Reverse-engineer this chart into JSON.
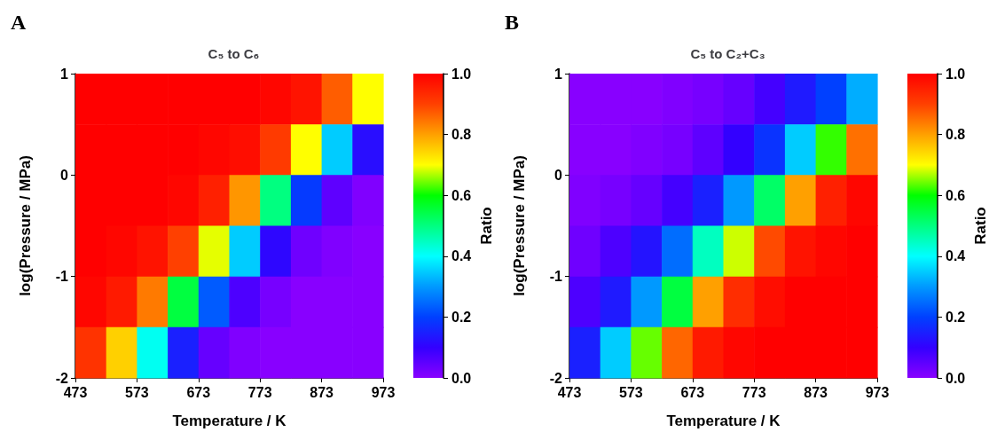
{
  "chart_data": [
    {
      "type": "heatmap",
      "title": "C₅ to C₆",
      "xlabel": "Temperature / K",
      "ylabel": "log(Pressure / MPa)",
      "clabel": "Ratio",
      "annotations": [
        "A"
      ],
      "x": [
        498,
        548,
        598,
        648,
        698,
        748,
        798,
        848,
        898,
        948
      ],
      "y": [
        0.75,
        0.25,
        -0.25,
        -0.75,
        -1.25,
        -1.75
      ],
      "xlim": [
        473,
        973
      ],
      "xticks": [
        473,
        573,
        673,
        773,
        873,
        973
      ],
      "ylim": [
        -2,
        1
      ],
      "yticks": [
        -2,
        -1,
        0,
        1
      ],
      "clim": [
        0,
        1
      ],
      "cticks": [
        {
          "value": 0,
          "label": "0.0"
        },
        {
          "value": 0.2,
          "label": "0.2"
        },
        {
          "value": 0.4,
          "label": "0.4"
        },
        {
          "value": 0.6,
          "label": "0.6"
        },
        {
          "value": 0.8,
          "label": "0.8"
        },
        {
          "value": 1,
          "label": "1.0"
        }
      ],
      "cells": [
        [
          1.0,
          1.0,
          1.0,
          1.0,
          1.0,
          1.0,
          0.99,
          0.97,
          0.87,
          0.7
        ],
        [
          1.0,
          1.0,
          1.0,
          1.0,
          0.99,
          0.98,
          0.91,
          0.7,
          0.35,
          0.12
        ],
        [
          1.0,
          1.0,
          1.0,
          0.99,
          0.95,
          0.81,
          0.5,
          0.19,
          0.05,
          0.01
        ],
        [
          1.0,
          0.99,
          0.97,
          0.9,
          0.69,
          0.35,
          0.11,
          0.03,
          0.01,
          0.0
        ],
        [
          0.99,
          0.96,
          0.84,
          0.55,
          0.23,
          0.07,
          0.02,
          0.0,
          0.0,
          0.0
        ],
        [
          0.92,
          0.75,
          0.41,
          0.15,
          0.04,
          0.01,
          0.0,
          0.0,
          0.0,
          0.0
        ]
      ]
    },
    {
      "type": "heatmap",
      "title": "C₅ to C₂+C₃",
      "xlabel": "Temperature / K",
      "ylabel": "log(Pressure / MPa)",
      "clabel": "Ratio",
      "annotations": [
        "B"
      ],
      "x": [
        498,
        548,
        598,
        648,
        698,
        748,
        798,
        848,
        898,
        948
      ],
      "y": [
        0.75,
        0.25,
        -0.25,
        -0.75,
        -1.25,
        -1.75
      ],
      "xlim": [
        473,
        973
      ],
      "xticks": [
        473,
        573,
        673,
        773,
        873,
        973
      ],
      "ylim": [
        -2,
        1
      ],
      "yticks": [
        -2,
        -1,
        0,
        1
      ],
      "clim": [
        0,
        1
      ],
      "cticks": [
        {
          "value": 0,
          "label": "0.0"
        },
        {
          "value": 0.2,
          "label": "0.2"
        },
        {
          "value": 0.4,
          "label": "0.4"
        },
        {
          "value": 0.6,
          "label": "0.6"
        },
        {
          "value": 0.8,
          "label": "0.8"
        },
        {
          "value": 1,
          "label": "1.0"
        }
      ],
      "cells": [
        [
          0.0,
          0.0,
          0.0,
          0.01,
          0.02,
          0.04,
          0.08,
          0.14,
          0.2,
          0.32
        ],
        [
          0.0,
          0.0,
          0.01,
          0.02,
          0.05,
          0.1,
          0.18,
          0.35,
          0.62,
          0.85
        ],
        [
          0.01,
          0.02,
          0.04,
          0.08,
          0.15,
          0.3,
          0.52,
          0.8,
          0.95,
          0.99
        ],
        [
          0.03,
          0.07,
          0.13,
          0.25,
          0.45,
          0.68,
          0.89,
          0.97,
          0.99,
          1.0
        ],
        [
          0.07,
          0.14,
          0.3,
          0.55,
          0.8,
          0.93,
          0.98,
          1.0,
          1.0,
          1.0
        ],
        [
          0.15,
          0.35,
          0.64,
          0.86,
          0.96,
          0.99,
          1.0,
          1.0,
          1.0,
          1.0
        ]
      ]
    }
  ]
}
